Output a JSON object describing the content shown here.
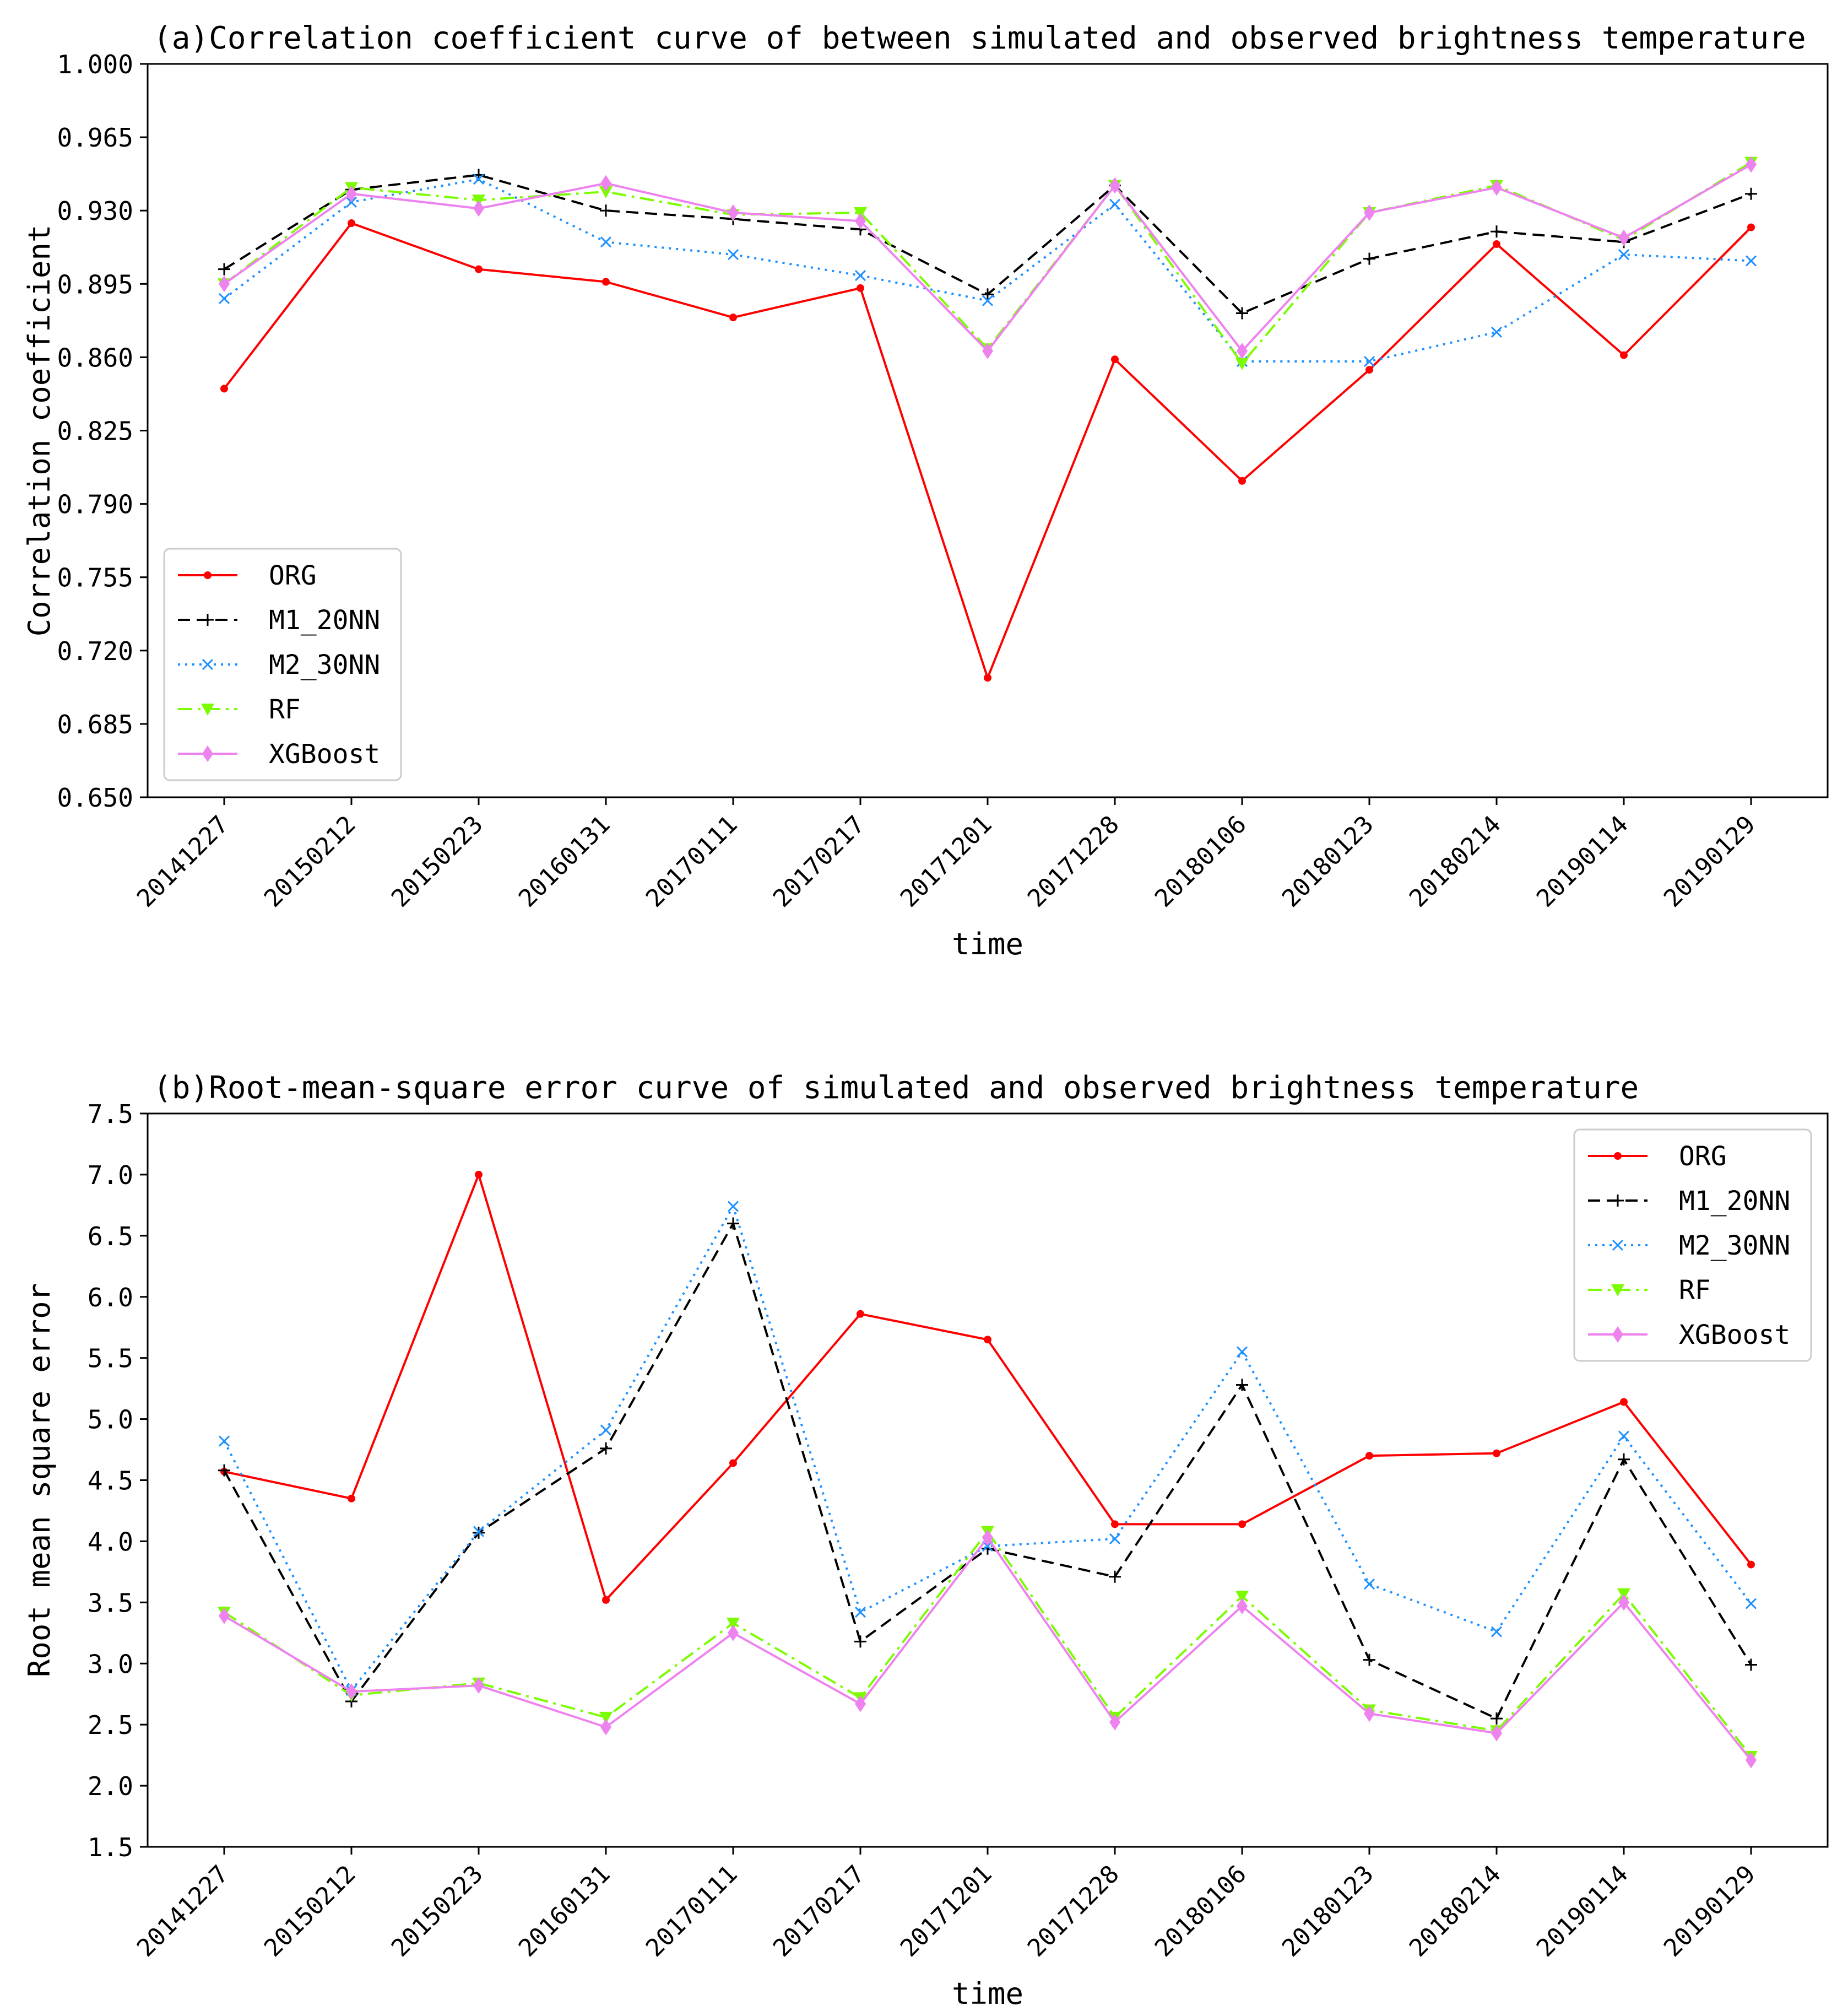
{
  "chart_data": [
    {
      "type": "line",
      "title": "(a)Correlation coefficient curve of between simulated and observed brightness temperature",
      "xlabel": "time",
      "ylabel": "Correlation coefficient",
      "ylim": [
        0.65,
        1.0
      ],
      "yticks": [
        "0.650",
        "0.685",
        "0.720",
        "0.755",
        "0.790",
        "0.825",
        "0.860",
        "0.895",
        "0.930",
        "0.965",
        "1.000"
      ],
      "categories": [
        "20141227",
        "20150212",
        "20150223",
        "20160131",
        "20170111",
        "20170217",
        "20171201",
        "20171228",
        "20180106",
        "20180123",
        "20180214",
        "20190114",
        "20190129"
      ],
      "legend_position": "lower-left",
      "series": [
        {
          "name": "ORG",
          "values": [
            0.845,
            0.924,
            0.902,
            0.896,
            0.879,
            0.893,
            0.707,
            0.859,
            0.801,
            0.854,
            0.914,
            0.861,
            0.922
          ]
        },
        {
          "name": "M1_20NN",
          "values": [
            0.902,
            0.94,
            0.947,
            0.93,
            0.926,
            0.921,
            0.89,
            0.942,
            0.881,
            0.907,
            0.92,
            0.915,
            0.938
          ]
        },
        {
          "name": "M2_30NN",
          "values": [
            0.888,
            0.934,
            0.945,
            0.915,
            0.909,
            0.899,
            0.887,
            0.933,
            0.858,
            0.858,
            0.872,
            0.909,
            0.906
          ]
        },
        {
          "name": "RF",
          "values": [
            0.895,
            0.941,
            0.935,
            0.939,
            0.928,
            0.929,
            0.864,
            0.942,
            0.857,
            0.929,
            0.942,
            0.916,
            0.953
          ]
        },
        {
          "name": "XGBoost",
          "values": [
            0.895,
            0.938,
            0.931,
            0.943,
            0.929,
            0.925,
            0.863,
            0.942,
            0.863,
            0.929,
            0.941,
            0.917,
            0.952
          ]
        }
      ]
    },
    {
      "type": "line",
      "title": "(b)Root-mean-square error curve of simulated and observed brightness temperature",
      "xlabel": "time",
      "ylabel": "Root mean square error",
      "ylim": [
        1.5,
        7.5
      ],
      "yticks": [
        "1.5",
        "2.0",
        "2.5",
        "3.0",
        "3.5",
        "4.0",
        "4.5",
        "5.0",
        "5.5",
        "6.0",
        "6.5",
        "7.0",
        "7.5"
      ],
      "categories": [
        "20141227",
        "20150212",
        "20150223",
        "20160131",
        "20170111",
        "20170217",
        "20171201",
        "20171228",
        "20180106",
        "20180123",
        "20180214",
        "20190114",
        "20190129"
      ],
      "legend_position": "upper-right",
      "series": [
        {
          "name": "ORG",
          "values": [
            4.57,
            4.35,
            7.0,
            3.52,
            4.64,
            5.86,
            5.65,
            4.14,
            4.14,
            4.7,
            4.72,
            5.14,
            3.81
          ]
        },
        {
          "name": "M1_20NN",
          "values": [
            4.58,
            2.69,
            4.07,
            4.76,
            6.6,
            3.18,
            3.94,
            3.71,
            5.28,
            3.03,
            2.55,
            4.67,
            2.99
          ]
        },
        {
          "name": "M2_30NN",
          "values": [
            4.82,
            2.78,
            4.08,
            4.91,
            6.74,
            3.42,
            3.96,
            4.02,
            5.55,
            3.65,
            3.26,
            4.86,
            3.49
          ]
        },
        {
          "name": "RF",
          "values": [
            3.42,
            2.74,
            2.84,
            2.56,
            3.33,
            2.72,
            4.08,
            2.56,
            3.55,
            2.62,
            2.45,
            3.57,
            2.24
          ]
        },
        {
          "name": "XGBoost",
          "values": [
            3.39,
            2.77,
            2.82,
            2.48,
            3.25,
            2.67,
            4.03,
            2.52,
            3.47,
            2.59,
            2.43,
            3.5,
            2.21
          ]
        }
      ]
    }
  ],
  "style": {
    "colors": {
      "ORG": "#ff0000",
      "M1_20NN": "#000000",
      "M2_30NN": "#1e90ff",
      "RF": "#7cfc00",
      "XGBoost": "#ee82ee"
    },
    "markers": {
      "ORG": "dot",
      "M1_20NN": "plus",
      "M2_30NN": "x",
      "RF": "triangle-down",
      "XGBoost": "diamond"
    }
  }
}
